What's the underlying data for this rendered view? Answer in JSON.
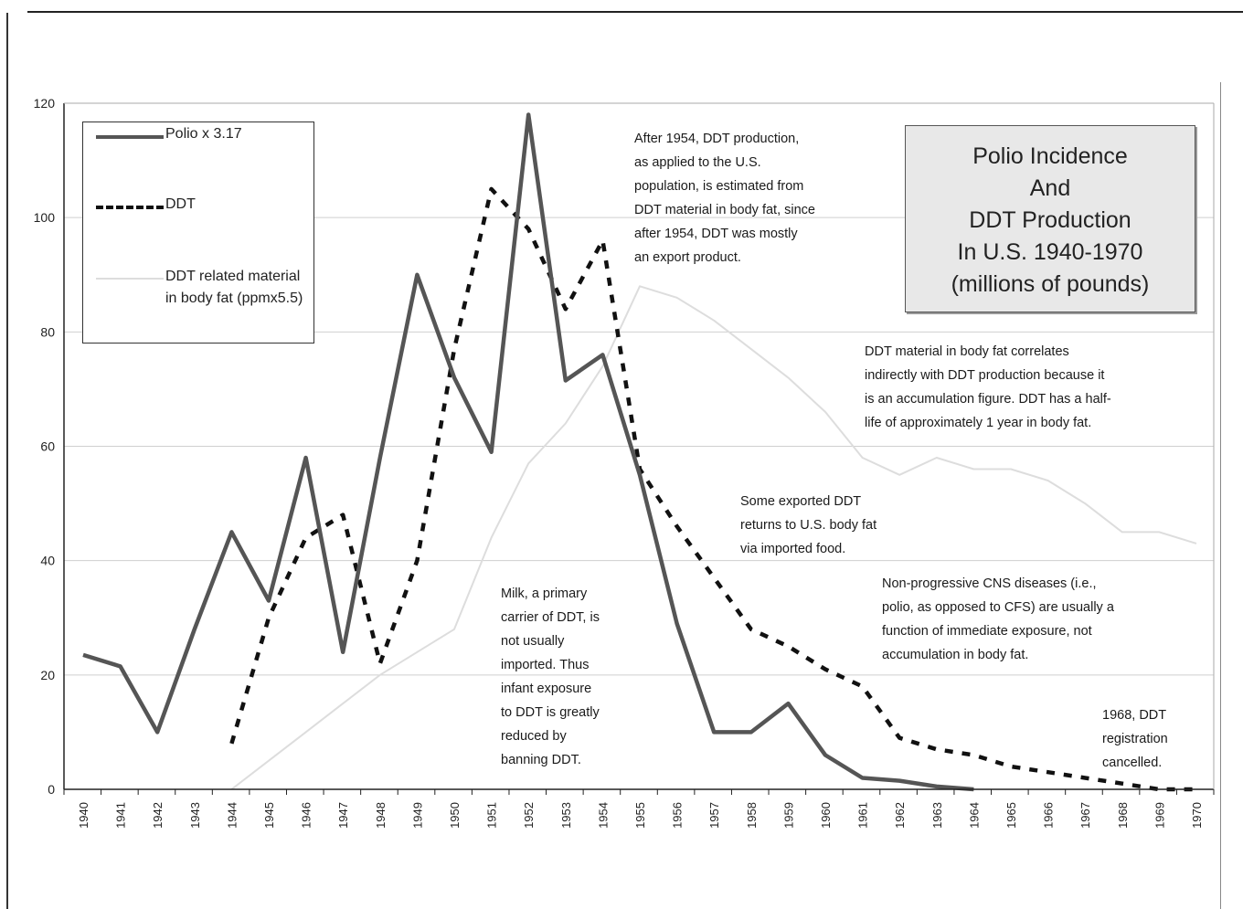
{
  "chart_data": {
    "type": "line",
    "title": "Polio Incidence\nAnd\nDDT Production\nIn U.S. 1940-1970\n(millions of pounds)",
    "x": [
      "1940",
      "1941",
      "1942",
      "1943",
      "1944",
      "1945",
      "1946",
      "1947",
      "1948",
      "1949",
      "1950",
      "1951",
      "1952",
      "1953",
      "1954",
      "1955",
      "1956",
      "1957",
      "1958",
      "1959",
      "1960",
      "1961",
      "1962",
      "1963",
      "1964",
      "1965",
      "1966",
      "1967",
      "1968",
      "1969",
      "1970"
    ],
    "ylim": [
      0,
      120
    ],
    "yticks": [
      "0",
      "20",
      "40",
      "60",
      "80",
      "100",
      "120"
    ],
    "grid": true,
    "legend_position": "top-left",
    "series": [
      {
        "name": "Polio x 3.17",
        "style": "solid",
        "color": "#555555",
        "values": [
          23.5,
          21.5,
          10,
          28,
          45,
          33,
          58,
          24,
          58,
          90,
          72,
          59,
          118,
          71.5,
          76,
          55,
          29,
          10,
          10,
          15,
          6,
          2,
          1.5,
          0.5,
          0,
          null,
          null,
          null,
          null,
          null,
          null
        ]
      },
      {
        "name": "DDT",
        "style": "dashed",
        "color": "#111111",
        "values": [
          null,
          null,
          null,
          null,
          8,
          30,
          44,
          48,
          22,
          40,
          77,
          105,
          98,
          84,
          96,
          56,
          46,
          37,
          28,
          25,
          21,
          18,
          9,
          7,
          6,
          4,
          3,
          2,
          1,
          0,
          0
        ]
      },
      {
        "name": "DDT related material in body fat (ppmx5.5)",
        "style": "solid",
        "color": "#dddddd",
        "values": [
          null,
          null,
          null,
          null,
          0,
          5,
          10,
          15,
          20,
          24,
          28,
          44,
          57,
          64,
          74,
          88,
          86,
          82,
          77,
          72,
          66,
          58,
          55,
          58,
          56,
          56,
          54,
          50,
          45,
          45,
          43
        ]
      }
    ],
    "annotations": [
      "After 1954, DDT production,\nas applied to the U.S.\npopulation, is estimated from\nDDT material in body fat, since\nafter 1954, DDT was mostly\nan export product.",
      "DDT material in body fat correlates\nindirectly with DDT production because it\nis an accumulation figure. DDT has a half-\nlife of approximately 1 year in body fat.",
      "Some exported DDT\nreturns to U.S. body fat\nvia imported food.",
      "Milk, a primary\ncarrier of DDT, is\nnot usually\nimported. Thus\ninfant exposure\nto DDT is greatly\nreduced by\nbanning DDT.",
      "Non-progressive CNS diseases (i.e.,\npolio, as opposed to CFS) are usually a\nfunction of immediate exposure, not\naccumulation in body fat.",
      "1968, DDT\nregistration\ncancelled."
    ]
  }
}
